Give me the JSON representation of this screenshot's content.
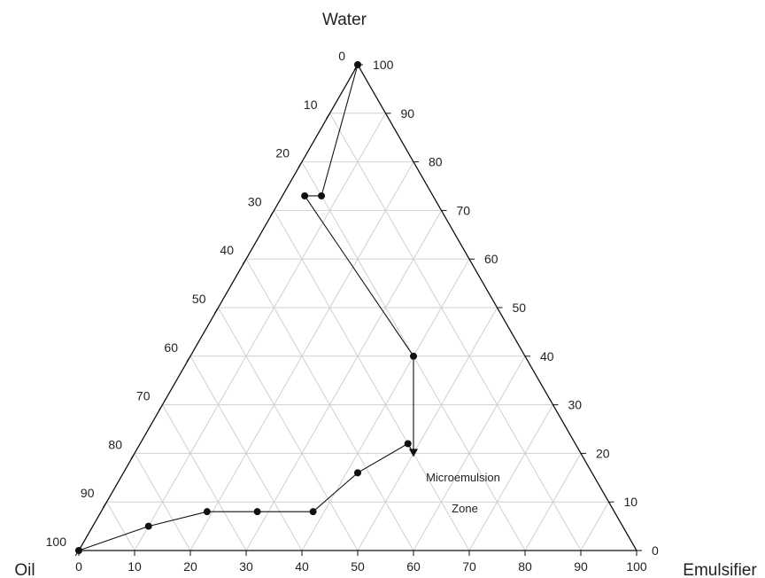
{
  "chart_data": {
    "type": "ternary",
    "corners": {
      "top": "Water",
      "left": "Oil",
      "right": "Emulsifier"
    },
    "axis_range": [
      0,
      100
    ],
    "grid_step": 10,
    "grid": true,
    "emulsifier_ticks": [
      "0",
      "10",
      "20",
      "30",
      "40",
      "50",
      "60",
      "70",
      "80",
      "90",
      "100"
    ],
    "water_ticks": [
      "0",
      "10",
      "20",
      "30",
      "40",
      "50",
      "60",
      "70",
      "80",
      "90",
      "100"
    ],
    "oil_ticks": [
      "0",
      "10",
      "20",
      "30",
      "40",
      "50",
      "60",
      "70",
      "80",
      "90",
      "100"
    ],
    "annotations": [
      "Microemulsion",
      "Zone"
    ],
    "series": [
      {
        "points": [
          {
            "oil": 0,
            "water": 100,
            "emulsifier": 0,
            "marker": "circle"
          },
          {
            "oil": 20,
            "water": 73,
            "emulsifier": 7,
            "marker": "circle"
          },
          {
            "oil": 23,
            "water": 73,
            "emulsifier": 4,
            "marker": "circle"
          },
          {
            "oil": 20,
            "water": 40,
            "emulsifier": 40,
            "marker": "circle"
          },
          {
            "oil": 30,
            "water": 20,
            "emulsifier": 50,
            "marker": "triangle"
          },
          {
            "oil": 30,
            "water": 22,
            "emulsifier": 48,
            "marker": "circle"
          },
          {
            "oil": 42,
            "water": 16,
            "emulsifier": 42,
            "marker": "circle"
          },
          {
            "oil": 54,
            "water": 8,
            "emulsifier": 38,
            "marker": "circle"
          },
          {
            "oil": 64,
            "water": 8,
            "emulsifier": 28,
            "marker": "circle"
          },
          {
            "oil": 73,
            "water": 8,
            "emulsifier": 19,
            "marker": "circle"
          },
          {
            "oil": 85,
            "water": 5,
            "emulsifier": 10,
            "marker": "circle"
          },
          {
            "oil": 100,
            "water": 0,
            "emulsifier": 0,
            "marker": "circle"
          }
        ]
      }
    ]
  }
}
